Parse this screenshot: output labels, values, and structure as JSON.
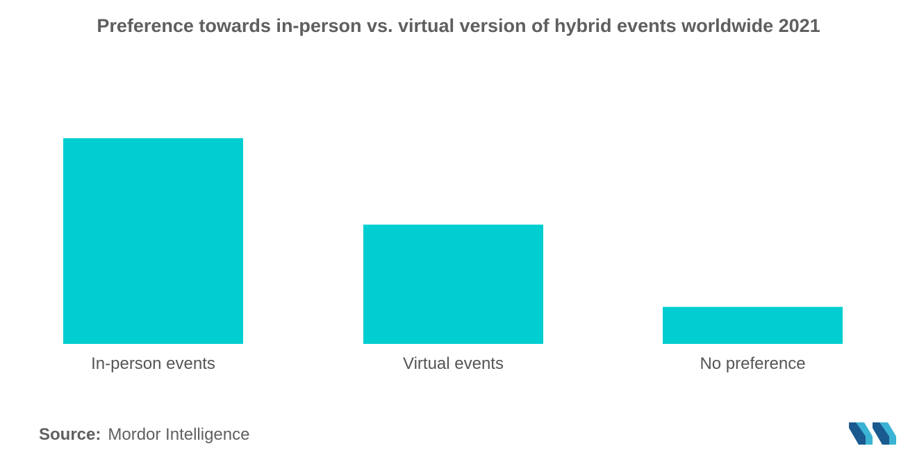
{
  "chart_data": {
    "type": "bar",
    "title": "Preference towards in-person vs. virtual version of hybrid events worldwide 2021",
    "categories": [
      "In-person events",
      "Virtual events",
      "No preference"
    ],
    "values": [
      100,
      58,
      18
    ],
    "xlabel": "",
    "ylabel": "",
    "ylim": [
      0,
      100
    ],
    "grid": false,
    "legend": "none",
    "bar_color": "#00ced1"
  },
  "footer": {
    "source_label": "Source:",
    "source_name": "Mordor Intelligence"
  },
  "logo": {
    "icon": "mordor-intelligence-logo",
    "colors": [
      "#1a5a8f",
      "#3bb3d4"
    ]
  }
}
